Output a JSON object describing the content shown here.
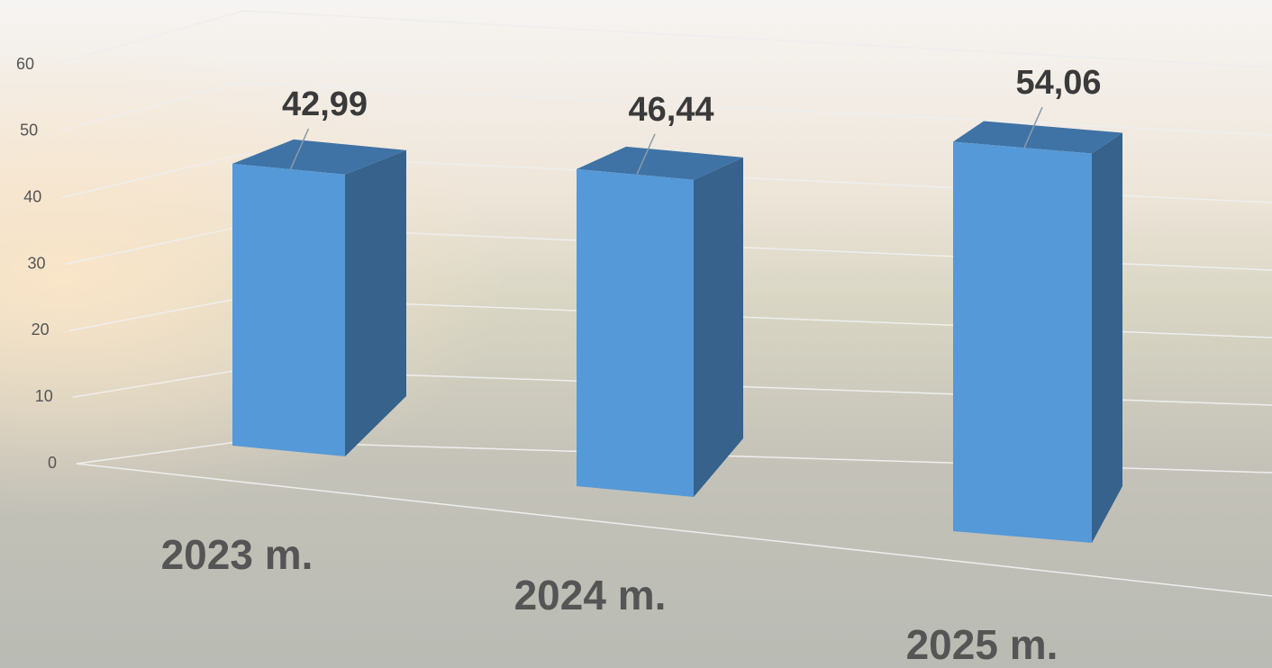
{
  "chart_data": {
    "type": "bar3d",
    "categories": [
      "2023 m.",
      "2024 m.",
      "2025 m."
    ],
    "values": [
      42.99,
      46.44,
      54.06
    ],
    "value_labels": [
      "42,99",
      "46,44",
      "54,06"
    ],
    "color": "#5599d8",
    "ylim": [
      0,
      60
    ],
    "yticks": [
      0,
      10,
      20,
      30,
      40,
      50,
      60
    ],
    "grid": true
  }
}
